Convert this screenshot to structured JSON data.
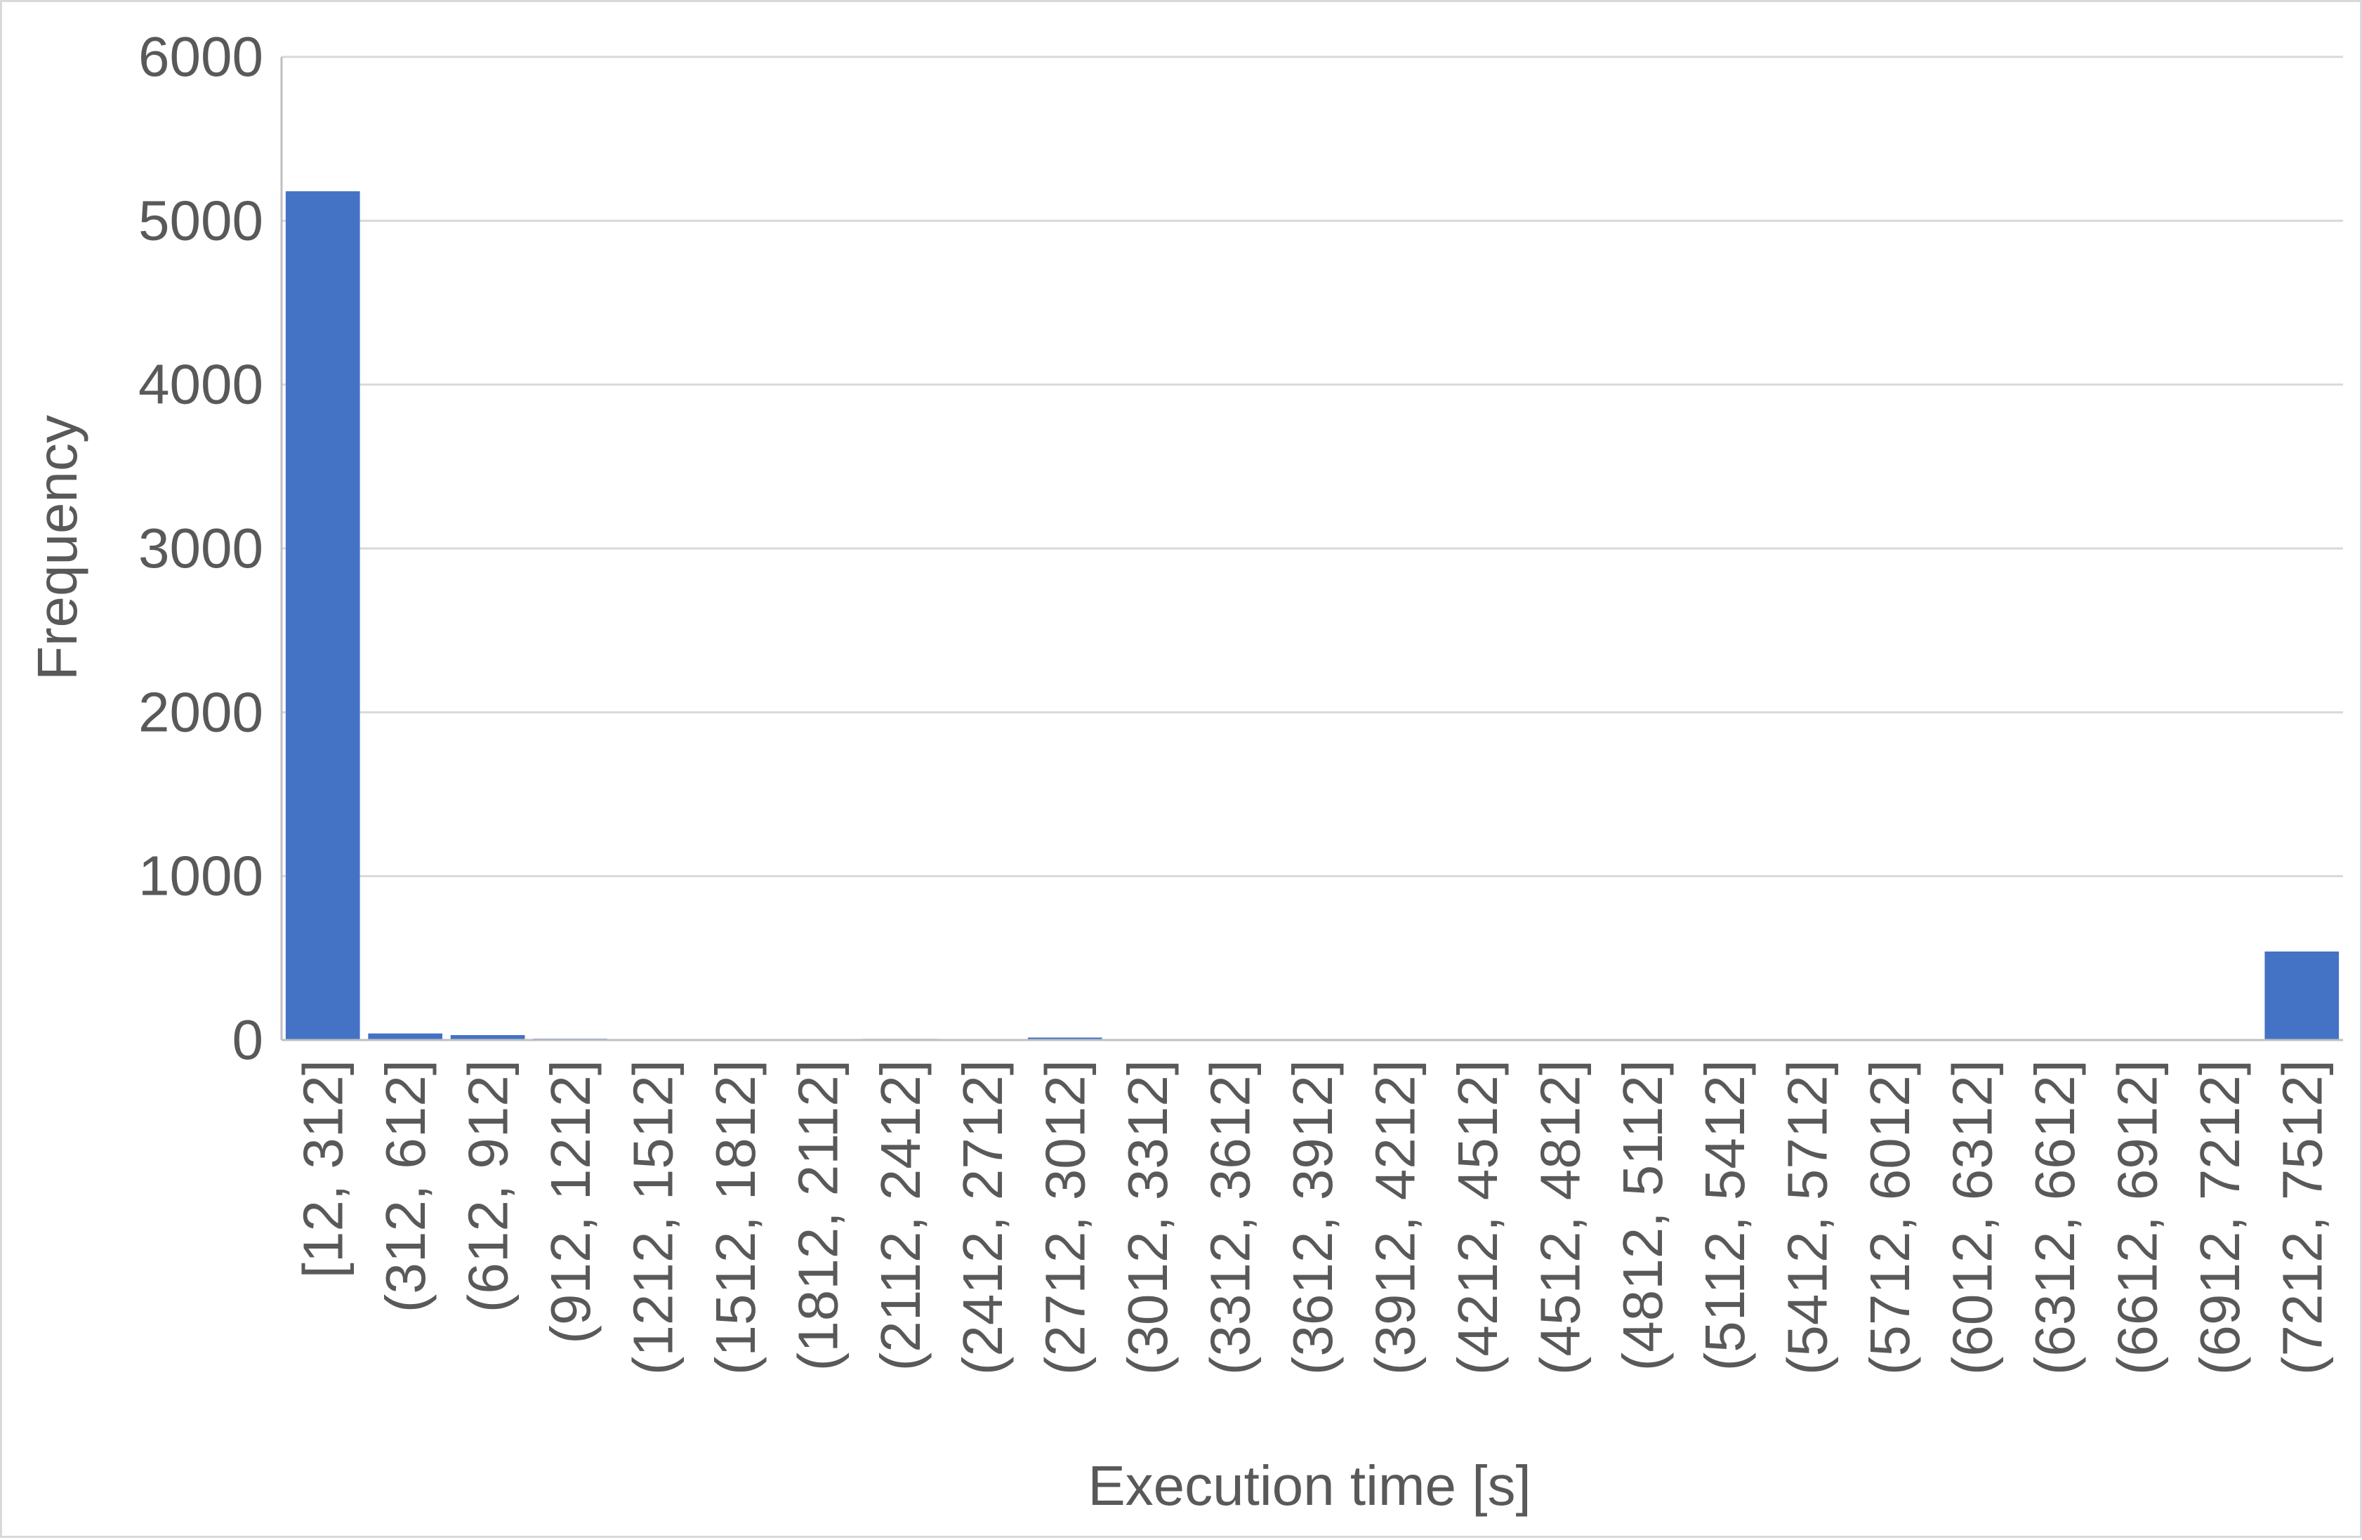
{
  "chart_data": {
    "type": "bar",
    "title": "",
    "xlabel": "Execution time [s]",
    "ylabel": "Frequency",
    "categories": [
      "[12, 312]",
      "(312, 612]",
      "(612, 912]",
      "(912, 1212]",
      "(1212, 1512]",
      "(1512, 1812]",
      "(1812, 2112]",
      "(2112, 2412]",
      "(2412, 2712]",
      "(2712, 3012]",
      "(3012, 3312]",
      "(3312, 3612]",
      "(3612, 3912]",
      "(3912, 4212]",
      "(4212, 4512]",
      "(4512, 4812]",
      "(4812, 5112]",
      "(5112, 5412]",
      "(5412, 5712]",
      "(5712, 6012]",
      "(6012, 6312]",
      "(6312, 6612]",
      "(6612, 6912]",
      "(6912, 7212]",
      "(7212, 7512]"
    ],
    "values": [
      5180,
      40,
      30,
      8,
      2,
      1,
      1,
      7,
      2,
      15,
      1,
      0,
      0,
      0,
      0,
      0,
      0,
      0,
      0,
      0,
      0,
      0,
      0,
      0,
      540
    ],
    "ylim": [
      0,
      6000
    ],
    "yticks": [
      0,
      1000,
      2000,
      3000,
      4000,
      5000,
      6000
    ],
    "grid": true,
    "legend": "none",
    "colors": {
      "bar": "#4472C4",
      "grid": "#d9d9d9",
      "axis": "#bfbfbf",
      "text": "#595959"
    }
  }
}
